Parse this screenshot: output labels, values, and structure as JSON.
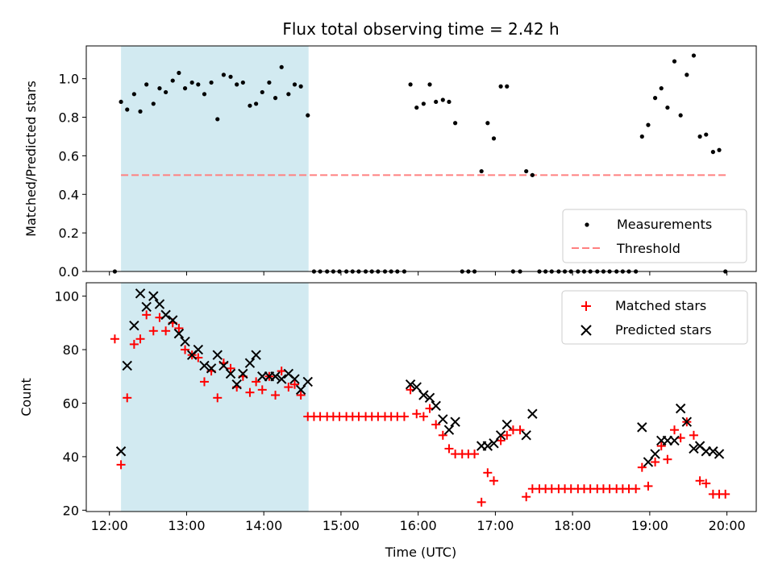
{
  "chart_data": {
    "title": "Flux total observing time = 2.42 h",
    "xlabel": "Time (UTC)",
    "x_ticks": [
      "12:00",
      "13:00",
      "14:00",
      "15:00",
      "16:00",
      "17:00",
      "18:00",
      "19:00",
      "20:00"
    ],
    "x_range_hours": [
      11.7,
      20.38
    ],
    "highlight_span_hours": [
      12.15,
      14.58
    ],
    "colors": {
      "highlight": "#add8e6",
      "matched": "#ff0000",
      "predicted": "#000000",
      "threshold": "#ff8080",
      "measurement": "#000000"
    },
    "panels": [
      {
        "type": "scatter",
        "ylabel": "Matched/Predicted stars",
        "ylim": [
          0,
          1.17
        ],
        "y_ticks": [
          0.0,
          0.2,
          0.4,
          0.6,
          0.8,
          1.0
        ],
        "legend_position": "lower-right",
        "threshold": {
          "name": "Threshold",
          "value": 0.5,
          "x_start": 12.15,
          "x_end": 20.0
        },
        "series": [
          {
            "name": "Measurements",
            "x": [
              12.07,
              12.15,
              12.23,
              12.32,
              12.4,
              12.48,
              12.57,
              12.65,
              12.73,
              12.82,
              12.9,
              12.98,
              13.07,
              13.15,
              13.23,
              13.32,
              13.4,
              13.48,
              13.57,
              13.65,
              13.73,
              13.82,
              13.9,
              13.98,
              14.07,
              14.15,
              14.23,
              14.32,
              14.4,
              14.48,
              14.57,
              14.65,
              14.73,
              14.82,
              14.9,
              14.98,
              15.07,
              15.15,
              15.23,
              15.32,
              15.4,
              15.48,
              15.57,
              15.65,
              15.73,
              15.82,
              15.9,
              15.98,
              16.07,
              16.15,
              16.23,
              16.32,
              16.4,
              16.48,
              16.57,
              16.65,
              16.73,
              16.82,
              16.9,
              16.98,
              17.07,
              17.15,
              17.23,
              17.32,
              17.4,
              17.48,
              17.57,
              17.65,
              17.73,
              17.82,
              17.9,
              17.98,
              18.07,
              18.15,
              18.23,
              18.32,
              18.4,
              18.48,
              18.57,
              18.65,
              18.73,
              18.82,
              18.9,
              18.98,
              19.07,
              19.15,
              19.23,
              19.32,
              19.4,
              19.48,
              19.57,
              19.65,
              19.73,
              19.82,
              19.9,
              19.98
            ],
            "y": [
              0.0,
              0.88,
              0.84,
              0.92,
              0.83,
              0.97,
              0.87,
              0.95,
              0.93,
              0.99,
              1.03,
              0.95,
              0.98,
              0.97,
              0.92,
              0.98,
              0.79,
              1.02,
              1.01,
              0.97,
              0.98,
              0.86,
              0.87,
              0.93,
              0.98,
              0.9,
              1.06,
              0.92,
              0.97,
              0.96,
              0.81,
              0.0,
              0.0,
              0.0,
              0.0,
              0.0,
              0.0,
              0.0,
              0.0,
              0.0,
              0.0,
              0.0,
              0.0,
              0.0,
              0.0,
              0.0,
              0.97,
              0.85,
              0.87,
              0.97,
              0.88,
              0.89,
              0.88,
              0.77,
              0.0,
              0.0,
              0.0,
              0.52,
              0.77,
              0.69,
              0.96,
              0.96,
              0.0,
              0.0,
              0.52,
              0.5,
              0.0,
              0.0,
              0.0,
              0.0,
              0.0,
              0.0,
              0.0,
              0.0,
              0.0,
              0.0,
              0.0,
              0.0,
              0.0,
              0.0,
              0.0,
              0.0,
              0.7,
              0.76,
              0.9,
              0.95,
              0.85,
              1.09,
              0.81,
              1.02,
              1.12,
              0.7,
              0.71,
              0.62,
              0.63,
              0.0
            ]
          }
        ]
      },
      {
        "type": "scatter",
        "ylabel": "Count",
        "ylim": [
          19.5,
          105
        ],
        "y_ticks": [
          20,
          40,
          60,
          80,
          100
        ],
        "legend_position": "upper-right",
        "series": [
          {
            "name": "Matched stars",
            "marker": "plus",
            "x": [
              12.07,
              12.15,
              12.23,
              12.32,
              12.4,
              12.48,
              12.57,
              12.65,
              12.73,
              12.82,
              12.9,
              12.98,
              13.07,
              13.15,
              13.23,
              13.32,
              13.4,
              13.48,
              13.57,
              13.65,
              13.73,
              13.82,
              13.9,
              13.98,
              14.07,
              14.15,
              14.23,
              14.32,
              14.4,
              14.48,
              14.57,
              14.65,
              14.73,
              14.82,
              14.9,
              14.98,
              15.07,
              15.15,
              15.23,
              15.32,
              15.4,
              15.48,
              15.57,
              15.65,
              15.73,
              15.82,
              15.9,
              15.98,
              16.07,
              16.15,
              16.23,
              16.32,
              16.4,
              16.48,
              16.57,
              16.65,
              16.73,
              16.82,
              16.9,
              16.98,
              17.07,
              17.15,
              17.23,
              17.32,
              17.4,
              17.48,
              17.57,
              17.65,
              17.73,
              17.82,
              17.9,
              17.98,
              18.07,
              18.15,
              18.23,
              18.32,
              18.4,
              18.48,
              18.57,
              18.65,
              18.73,
              18.82,
              18.9,
              18.98,
              19.07,
              19.15,
              19.23,
              19.32,
              19.4,
              19.48,
              19.57,
              19.65,
              19.73,
              19.82,
              19.9,
              19.98
            ],
            "y": [
              84,
              37,
              62,
              82,
              84,
              93,
              87,
              92,
              87,
              90,
              88,
              80,
              78,
              77,
              68,
              72,
              62,
              75,
              73,
              66,
              70,
              64,
              68,
              65,
              70,
              63,
              72,
              66,
              67,
              63,
              55,
              55,
              55,
              55,
              55,
              55,
              55,
              55,
              55,
              55,
              55,
              55,
              55,
              55,
              55,
              55,
              65,
              56,
              55,
              58,
              52,
              48,
              43,
              41,
              41,
              41,
              41,
              23,
              34,
              31,
              46,
              48,
              50,
              50,
              25,
              28,
              28,
              28,
              28,
              28,
              28,
              28,
              28,
              28,
              28,
              28,
              28,
              28,
              28,
              28,
              28,
              28,
              36,
              29,
              38,
              44,
              39,
              50,
              47,
              53,
              48,
              31,
              30,
              26,
              26,
              26
            ]
          },
          {
            "name": "Predicted stars",
            "marker": "x",
            "x": [
              12.15,
              12.23,
              12.32,
              12.4,
              12.48,
              12.57,
              12.65,
              12.73,
              12.82,
              12.9,
              12.98,
              13.07,
              13.15,
              13.23,
              13.32,
              13.4,
              13.48,
              13.57,
              13.65,
              13.73,
              13.82,
              13.9,
              13.98,
              14.07,
              14.15,
              14.23,
              14.32,
              14.4,
              14.48,
              14.57,
              15.9,
              15.98,
              16.07,
              16.15,
              16.23,
              16.32,
              16.4,
              16.48,
              16.82,
              16.9,
              16.98,
              17.07,
              17.15,
              17.4,
              17.48,
              18.9,
              18.98,
              19.07,
              19.15,
              19.23,
              19.32,
              19.4,
              19.48,
              19.57,
              19.65,
              19.73,
              19.82,
              19.9
            ],
            "y": [
              42,
              74,
              89,
              101,
              96,
              100,
              97,
              93,
              91,
              86,
              83,
              78,
              80,
              74,
              73,
              78,
              74,
              71,
              67,
              71,
              75,
              78,
              70,
              70,
              70,
              69,
              71,
              69,
              65,
              68,
              67,
              66,
              63,
              62,
              59,
              54,
              50,
              53,
              44,
              44,
              45,
              48,
              52,
              48,
              56,
              51,
              38,
              41,
              46,
              46,
              46,
              58,
              53,
              43,
              44,
              42,
              42,
              41
            ]
          }
        ]
      }
    ]
  }
}
